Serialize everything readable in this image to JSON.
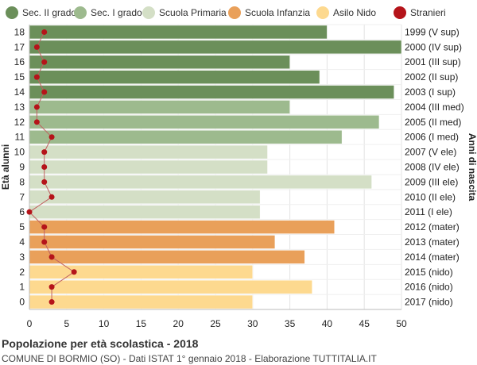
{
  "chart_data": {
    "type": "bar",
    "orientation": "horizontal",
    "title": "Popolazione per età scolastica - 2018",
    "subtitle": "COMUNE DI BORMIO (SO) - Dati ISTAT 1° gennaio 2018 - Elaborazione TUTTITALIA.IT",
    "ylabel_left": "Età alunni",
    "ylabel_right": "Anni di nascita",
    "xlim": [
      0,
      50
    ],
    "x_ticks": [
      0,
      5,
      10,
      15,
      20,
      25,
      30,
      35,
      40,
      45,
      50
    ],
    "grid": true,
    "legend_position": "top",
    "legend": [
      {
        "name": "Sec. II grado",
        "color": "#6b8f5a"
      },
      {
        "name": "Sec. I grado",
        "color": "#9dba8e"
      },
      {
        "name": "Scuola Primaria",
        "color": "#d4dfc6"
      },
      {
        "name": "Scuola Infanzia",
        "color": "#e9a05a"
      },
      {
        "name": "Asilo Nido",
        "color": "#fdd98f"
      },
      {
        "name": "Stranieri",
        "color": "#b5141a"
      }
    ],
    "rows": [
      {
        "age": "18",
        "birth": "1999 (V sup)",
        "value": 40,
        "stranieri": 2,
        "group": 0
      },
      {
        "age": "17",
        "birth": "2000 (IV sup)",
        "value": 50,
        "stranieri": 1,
        "group": 0
      },
      {
        "age": "16",
        "birth": "2001 (III sup)",
        "value": 35,
        "stranieri": 2,
        "group": 0
      },
      {
        "age": "15",
        "birth": "2002 (II sup)",
        "value": 39,
        "stranieri": 1,
        "group": 0
      },
      {
        "age": "14",
        "birth": "2003 (I sup)",
        "value": 49,
        "stranieri": 2,
        "group": 0
      },
      {
        "age": "13",
        "birth": "2004 (III med)",
        "value": 35,
        "stranieri": 1,
        "group": 1
      },
      {
        "age": "12",
        "birth": "2005 (II med)",
        "value": 47,
        "stranieri": 1,
        "group": 1
      },
      {
        "age": "11",
        "birth": "2006 (I med)",
        "value": 42,
        "stranieri": 3,
        "group": 1
      },
      {
        "age": "10",
        "birth": "2007 (V ele)",
        "value": 32,
        "stranieri": 2,
        "group": 2
      },
      {
        "age": "9",
        "birth": "2008 (IV ele)",
        "value": 32,
        "stranieri": 2,
        "group": 2
      },
      {
        "age": "8",
        "birth": "2009 (III ele)",
        "value": 46,
        "stranieri": 2,
        "group": 2
      },
      {
        "age": "7",
        "birth": "2010 (II ele)",
        "value": 31,
        "stranieri": 3,
        "group": 2
      },
      {
        "age": "6",
        "birth": "2011 (I ele)",
        "value": 31,
        "stranieri": 0,
        "group": 2
      },
      {
        "age": "5",
        "birth": "2012 (mater)",
        "value": 41,
        "stranieri": 2,
        "group": 3
      },
      {
        "age": "4",
        "birth": "2013 (mater)",
        "value": 33,
        "stranieri": 2,
        "group": 3
      },
      {
        "age": "3",
        "birth": "2014 (mater)",
        "value": 37,
        "stranieri": 3,
        "group": 3
      },
      {
        "age": "2",
        "birth": "2015 (nido)",
        "value": 30,
        "stranieri": 6,
        "group": 4
      },
      {
        "age": "1",
        "birth": "2016 (nido)",
        "value": 38,
        "stranieri": 3,
        "group": 4
      },
      {
        "age": "0",
        "birth": "2017 (nido)",
        "value": 30,
        "stranieri": 3,
        "group": 4
      }
    ]
  }
}
